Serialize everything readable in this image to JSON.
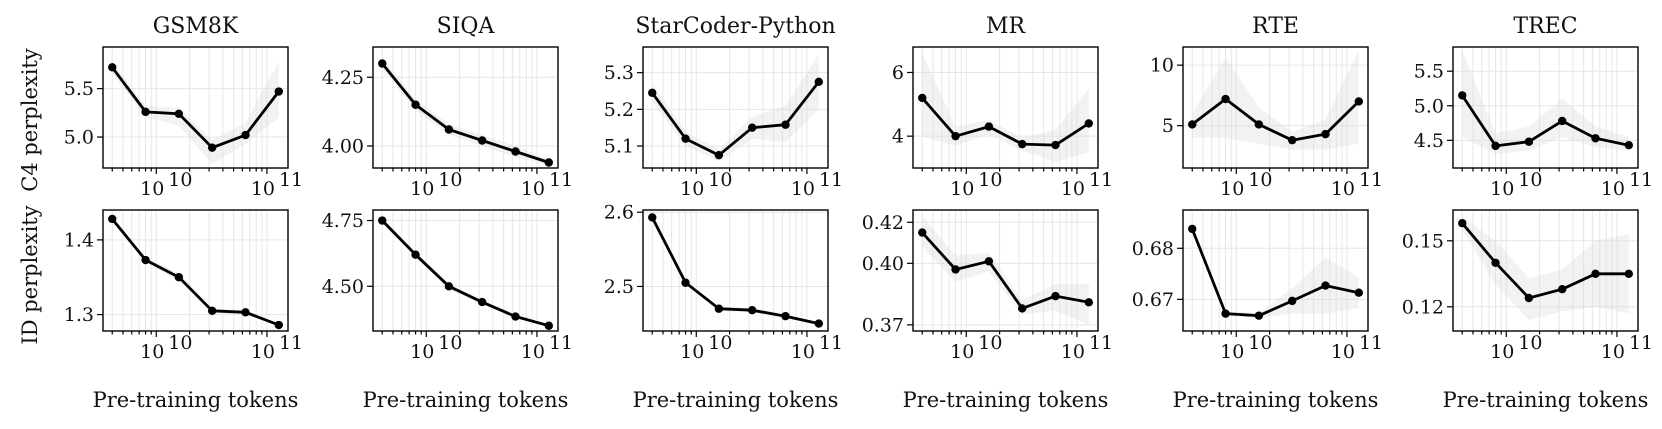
{
  "figure": {
    "ylabel_row1": "C4 perplexity",
    "ylabel_row2": "ID perplexity",
    "xlabel": "Pre-training tokens"
  },
  "chart_data": [
    {
      "type": "line",
      "row": 1,
      "col": 1,
      "title": "GSM8K",
      "x": [
        4000000000.0,
        8000000000.0,
        16000000000.0,
        32000000000.0,
        64000000000.0,
        128000000000.0
      ],
      "values": [
        5.72,
        5.26,
        5.24,
        4.89,
        5.02,
        5.47
      ],
      "band_low": [
        5.66,
        5.2,
        5.12,
        4.72,
        4.93,
        5.2
      ],
      "band_high": [
        5.78,
        5.32,
        5.3,
        4.97,
        5.15,
        5.78
      ],
      "ylim": [
        4.68,
        5.93
      ],
      "yticks": [
        5.0,
        5.5
      ],
      "ytick_labels": [
        "5.0",
        "5.5"
      ],
      "xlim": [
        3300000000.0,
        155000000000.0
      ],
      "xticks": [
        10000000000.0,
        100000000000.0
      ],
      "xtick_labels": [
        "10",
        "10"
      ],
      "xtick_exp": "10",
      "xlabel": "",
      "ylabel": "C4 perplexity"
    },
    {
      "type": "line",
      "row": 1,
      "col": 2,
      "title": "SIQA",
      "x": [
        4000000000.0,
        8000000000.0,
        16000000000.0,
        32000000000.0,
        64000000000.0,
        128000000000.0
      ],
      "values": [
        4.3,
        4.15,
        4.06,
        4.02,
        3.98,
        3.94
      ],
      "band_low": [
        4.28,
        4.13,
        4.04,
        4.0,
        3.96,
        3.93
      ],
      "band_high": [
        4.32,
        4.17,
        4.08,
        4.04,
        4.0,
        3.95
      ],
      "ylim": [
        3.92,
        4.36
      ],
      "yticks": [
        4.0,
        4.25
      ],
      "ytick_labels": [
        "4.00",
        "4.25"
      ],
      "xlim": [
        3300000000.0,
        155000000000.0
      ],
      "xticks": [
        10000000000.0,
        100000000000.0
      ],
      "xtick_labels": [
        "10",
        "10"
      ],
      "xtick_exp": "10",
      "xlabel": "",
      "ylabel": ""
    },
    {
      "type": "line",
      "row": 1,
      "col": 3,
      "title": "StarCoder-Python",
      "x": [
        4000000000.0,
        8000000000.0,
        16000000000.0,
        32000000000.0,
        64000000000.0,
        128000000000.0
      ],
      "values": [
        5.245,
        5.12,
        5.075,
        5.15,
        5.158,
        5.275
      ],
      "band_low": [
        5.22,
        5.1,
        5.06,
        5.12,
        5.11,
        5.2
      ],
      "band_high": [
        5.27,
        5.14,
        5.09,
        5.18,
        5.21,
        5.35
      ],
      "ylim": [
        5.04,
        5.37
      ],
      "yticks": [
        5.1,
        5.2,
        5.3
      ],
      "ytick_labels": [
        "5.1",
        "5.2",
        "5.3"
      ],
      "xlim": [
        3300000000.0,
        155000000000.0
      ],
      "xticks": [
        10000000000.0,
        100000000000.0
      ],
      "xtick_labels": [
        "10",
        "10"
      ],
      "xtick_exp": "10",
      "xlabel": "",
      "ylabel": ""
    },
    {
      "type": "line",
      "row": 1,
      "col": 4,
      "title": "MR",
      "x": [
        4000000000.0,
        8000000000.0,
        16000000000.0,
        32000000000.0,
        64000000000.0,
        128000000000.0
      ],
      "values": [
        5.2,
        4.0,
        4.3,
        3.75,
        3.72,
        4.4
      ],
      "band_low": [
        4.0,
        3.7,
        4.05,
        3.55,
        3.2,
        3.5
      ],
      "band_high": [
        6.6,
        4.3,
        4.5,
        3.95,
        4.2,
        5.5
      ],
      "ylim": [
        3.0,
        6.8
      ],
      "yticks": [
        4,
        6
      ],
      "ytick_labels": [
        "4",
        "6"
      ],
      "xlim": [
        3300000000.0,
        155000000000.0
      ],
      "xticks": [
        10000000000.0,
        100000000000.0
      ],
      "xtick_labels": [
        "10",
        "10"
      ],
      "xtick_exp": "10",
      "xlabel": "",
      "ylabel": ""
    },
    {
      "type": "line",
      "row": 1,
      "col": 5,
      "title": "RTE",
      "x": [
        4000000000.0,
        8000000000.0,
        16000000000.0,
        32000000000.0,
        64000000000.0,
        128000000000.0
      ],
      "values": [
        5.1,
        7.2,
        5.1,
        3.8,
        4.3,
        7.0
      ],
      "band_low": [
        4.0,
        4.0,
        3.5,
        3.0,
        3.0,
        3.5
      ],
      "band_high": [
        6.0,
        10.6,
        6.5,
        4.5,
        5.5,
        11.3
      ],
      "ylim": [
        1.5,
        11.5
      ],
      "yticks": [
        5,
        10
      ],
      "ytick_labels": [
        "5",
        "10"
      ],
      "xlim": [
        3300000000.0,
        155000000000.0
      ],
      "xticks": [
        10000000000.0,
        100000000000.0
      ],
      "xtick_labels": [
        "10",
        "10"
      ],
      "xtick_exp": "10",
      "xlabel": "",
      "ylabel": ""
    },
    {
      "type": "line",
      "row": 1,
      "col": 6,
      "title": "TREC",
      "x": [
        4000000000.0,
        8000000000.0,
        16000000000.0,
        32000000000.0,
        64000000000.0,
        128000000000.0
      ],
      "values": [
        5.15,
        4.42,
        4.48,
        4.78,
        4.53,
        4.43
      ],
      "band_low": [
        4.55,
        4.3,
        4.35,
        4.55,
        4.4,
        4.35
      ],
      "band_high": [
        5.8,
        4.6,
        4.7,
        5.1,
        4.7,
        4.55
      ],
      "ylim": [
        4.1,
        5.85
      ],
      "yticks": [
        4.5,
        5.0,
        5.5
      ],
      "ytick_labels": [
        "4.5",
        "5.0",
        "5.5"
      ],
      "xlim": [
        3300000000.0,
        155000000000.0
      ],
      "xticks": [
        10000000000.0,
        100000000000.0
      ],
      "xtick_labels": [
        "10",
        "10"
      ],
      "xtick_exp": "10",
      "xlabel": "",
      "ylabel": ""
    },
    {
      "type": "line",
      "row": 2,
      "col": 1,
      "title": "",
      "x": [
        4000000000.0,
        8000000000.0,
        16000000000.0,
        32000000000.0,
        64000000000.0,
        128000000000.0
      ],
      "values": [
        1.428,
        1.373,
        1.35,
        1.305,
        1.303,
        1.286
      ],
      "band_low": [
        1.425,
        1.37,
        1.345,
        1.302,
        1.3,
        1.284
      ],
      "band_high": [
        1.431,
        1.376,
        1.355,
        1.308,
        1.306,
        1.288
      ],
      "ylim": [
        1.278,
        1.44
      ],
      "yticks": [
        1.3,
        1.4
      ],
      "ytick_labels": [
        "1.3",
        "1.4"
      ],
      "xlim": [
        3300000000.0,
        155000000000.0
      ],
      "xticks": [
        10000000000.0,
        100000000000.0
      ],
      "xtick_labels": [
        "10",
        "10"
      ],
      "xtick_exp": "10",
      "xlabel": "Pre-training tokens",
      "ylabel": "ID perplexity"
    },
    {
      "type": "line",
      "row": 2,
      "col": 2,
      "title": "",
      "x": [
        4000000000.0,
        8000000000.0,
        16000000000.0,
        32000000000.0,
        64000000000.0,
        128000000000.0
      ],
      "values": [
        4.75,
        4.62,
        4.5,
        4.44,
        4.385,
        4.35
      ],
      "band_low": [
        4.74,
        4.61,
        4.49,
        4.43,
        4.38,
        4.345
      ],
      "band_high": [
        4.76,
        4.63,
        4.51,
        4.45,
        4.39,
        4.355
      ],
      "ylim": [
        4.33,
        4.79
      ],
      "yticks": [
        4.5,
        4.75
      ],
      "ytick_labels": [
        "4.50",
        "4.75"
      ],
      "xlim": [
        3300000000.0,
        155000000000.0
      ],
      "xticks": [
        10000000000.0,
        100000000000.0
      ],
      "xtick_labels": [
        "10",
        "10"
      ],
      "xtick_exp": "10",
      "xlabel": "Pre-training tokens",
      "ylabel": ""
    },
    {
      "type": "line",
      "row": 2,
      "col": 3,
      "title": "",
      "x": [
        4000000000.0,
        8000000000.0,
        16000000000.0,
        32000000000.0,
        64000000000.0,
        128000000000.0
      ],
      "values": [
        2.593,
        2.505,
        2.47,
        2.468,
        2.46,
        2.45
      ],
      "band_low": [
        2.59,
        2.502,
        2.467,
        2.465,
        2.457,
        2.448
      ],
      "band_high": [
        2.596,
        2.508,
        2.473,
        2.471,
        2.463,
        2.452
      ],
      "ylim": [
        2.44,
        2.603
      ],
      "yticks": [
        2.5,
        2.6
      ],
      "ytick_labels": [
        "2.5",
        "2.6"
      ],
      "xlim": [
        3300000000.0,
        155000000000.0
      ],
      "xticks": [
        10000000000.0,
        100000000000.0
      ],
      "xtick_labels": [
        "10",
        "10"
      ],
      "xtick_exp": "10",
      "xlabel": "Pre-training tokens",
      "ylabel": ""
    },
    {
      "type": "line",
      "row": 2,
      "col": 4,
      "title": "",
      "x": [
        4000000000.0,
        8000000000.0,
        16000000000.0,
        32000000000.0,
        64000000000.0,
        128000000000.0
      ],
      "values": [
        0.415,
        0.397,
        0.401,
        0.378,
        0.384,
        0.381
      ],
      "band_low": [
        0.408,
        0.391,
        0.396,
        0.375,
        0.377,
        0.37
      ],
      "band_high": [
        0.423,
        0.404,
        0.405,
        0.382,
        0.39,
        0.39
      ],
      "ylim": [
        0.367,
        0.426
      ],
      "yticks": [
        0.37,
        0.4,
        0.42
      ],
      "ytick_labels": [
        "0.37",
        "0.40",
        "0.42"
      ],
      "xlim": [
        3300000000.0,
        155000000000.0
      ],
      "xticks": [
        10000000000.0,
        100000000000.0
      ],
      "xtick_labels": [
        "10",
        "10"
      ],
      "xtick_exp": "10",
      "xlabel": "Pre-training tokens",
      "ylabel": ""
    },
    {
      "type": "line",
      "row": 2,
      "col": 5,
      "title": "",
      "x": [
        4000000000.0,
        8000000000.0,
        16000000000.0,
        32000000000.0,
        64000000000.0,
        128000000000.0
      ],
      "values": [
        0.6838,
        0.6672,
        0.6668,
        0.6697,
        0.6727,
        0.6713
      ],
      "band_low": [
        0.6835,
        0.6668,
        0.6663,
        0.6672,
        0.6672,
        0.6683
      ],
      "band_high": [
        0.6841,
        0.6676,
        0.6673,
        0.6722,
        0.6782,
        0.6743
      ],
      "ylim": [
        0.6638,
        0.6875
      ],
      "yticks": [
        0.67,
        0.68
      ],
      "ytick_labels": [
        "0.67",
        "0.68"
      ],
      "xlim": [
        3300000000.0,
        155000000000.0
      ],
      "xticks": [
        10000000000.0,
        100000000000.0
      ],
      "xtick_labels": [
        "10",
        "10"
      ],
      "xtick_exp": "10",
      "xlabel": "Pre-training tokens",
      "ylabel": ""
    },
    {
      "type": "line",
      "row": 2,
      "col": 6,
      "title": "",
      "x": [
        4000000000.0,
        8000000000.0,
        16000000000.0,
        32000000000.0,
        64000000000.0,
        128000000000.0
      ],
      "values": [
        0.158,
        0.14,
        0.124,
        0.128,
        0.135,
        0.135
      ],
      "band_low": [
        0.155,
        0.13,
        0.114,
        0.118,
        0.12,
        0.117
      ],
      "band_high": [
        0.161,
        0.15,
        0.133,
        0.137,
        0.15,
        0.153
      ],
      "ylim": [
        0.109,
        0.164
      ],
      "yticks": [
        0.12,
        0.15
      ],
      "ytick_labels": [
        "0.12",
        "0.15"
      ],
      "xlim": [
        3300000000.0,
        155000000000.0
      ],
      "xticks": [
        10000000000.0,
        100000000000.0
      ],
      "xtick_labels": [
        "10",
        "10"
      ],
      "xtick_exp": "10",
      "xlabel": "Pre-training tokens",
      "ylabel": ""
    }
  ]
}
